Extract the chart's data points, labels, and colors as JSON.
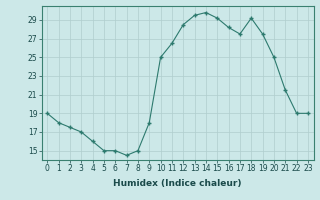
{
  "x": [
    0,
    1,
    2,
    3,
    4,
    5,
    6,
    7,
    8,
    9,
    10,
    11,
    12,
    13,
    14,
    15,
    16,
    17,
    18,
    19,
    20,
    21,
    22,
    23
  ],
  "y": [
    19,
    18,
    17.5,
    17,
    16,
    15,
    15,
    14.5,
    15,
    18,
    25,
    26.5,
    28.5,
    29.5,
    29.8,
    29.2,
    28.2,
    27.5,
    29.2,
    27.5,
    25,
    21.5,
    19,
    19
  ],
  "line_color": "#2d7a6e",
  "marker_color": "#2d7a6e",
  "bg_color": "#cce8e8",
  "grid_color": "#b0cece",
  "xlabel": "Humidex (Indice chaleur)",
  "xlim": [
    -0.5,
    23.5
  ],
  "ylim": [
    14.0,
    30.5
  ],
  "yticks": [
    15,
    17,
    19,
    21,
    23,
    25,
    27,
    29
  ],
  "xticks": [
    0,
    1,
    2,
    3,
    4,
    5,
    6,
    7,
    8,
    9,
    10,
    11,
    12,
    13,
    14,
    15,
    16,
    17,
    18,
    19,
    20,
    21,
    22,
    23
  ],
  "tick_fontsize": 5.5,
  "xlabel_fontsize": 6.5
}
